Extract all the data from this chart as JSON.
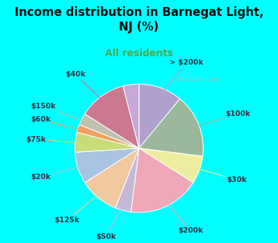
{
  "title": "Income distribution in Barnegat Light,\nNJ (%)",
  "subtitle": "All residents",
  "background_color": "#00FFFF",
  "watermark": "City-Data.com",
  "slices": [
    {
      "label": "> $200k",
      "value": 11,
      "color": "#b0a0cc"
    },
    {
      "label": "$100k",
      "value": 16,
      "color": "#9cb89c"
    },
    {
      "label": "$30k",
      "value": 7,
      "color": "#eeeea0"
    },
    {
      "label": "$200k",
      "value": 18,
      "color": "#f0a8b8"
    },
    {
      "label": "$50k",
      "value": 4,
      "color": "#c8b8d8"
    },
    {
      "label": "$125k",
      "value": 10,
      "color": "#f0c8a0"
    },
    {
      "label": "$20k",
      "value": 8,
      "color": "#a8c4e0"
    },
    {
      "label": "$75k",
      "value": 5,
      "color": "#c8dc78"
    },
    {
      "label": "$60k",
      "value": 2,
      "color": "#f0a060"
    },
    {
      "label": "$150k",
      "value": 3,
      "color": "#c0c0b0"
    },
    {
      "label": "$40k",
      "value": 12,
      "color": "#cc7890"
    },
    {
      "label": "$50k_b",
      "value": 4,
      "color": "#c8a8d8"
    }
  ],
  "label_fontsize": 7.5,
  "title_fontsize": 12,
  "subtitle_fontsize": 10,
  "subtitle_color": "#4aaa50",
  "title_color": "#111111",
  "label_color": "#333344"
}
